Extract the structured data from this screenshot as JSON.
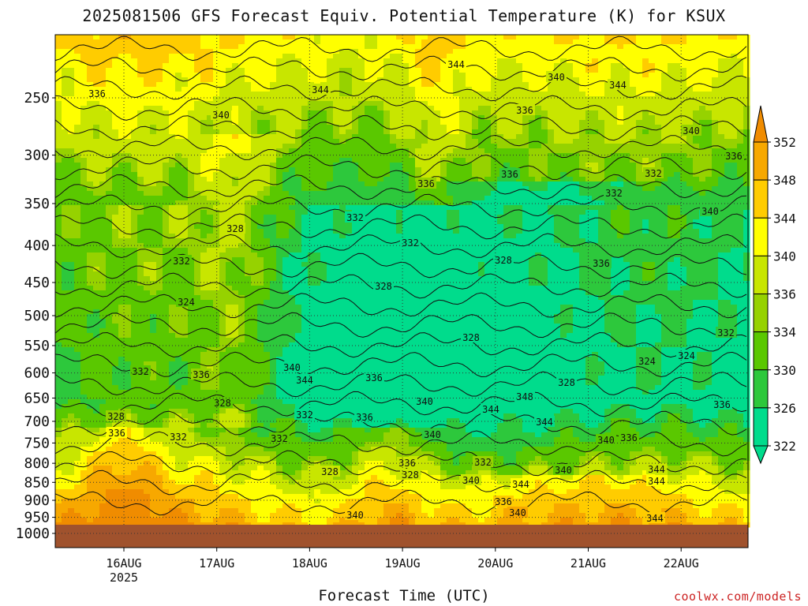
{
  "title": "2025081506 GFS Forecast Equiv. Potential Temperature (K) for KSUX",
  "xlabel": "Forecast Time (UTC)",
  "credit": "coolwx.com/models",
  "chart_data": {
    "type": "heatmap",
    "title": "2025081506 GFS Forecast Equiv. Potential Temperature (K) for KSUX",
    "xlabel": "Forecast Time (UTC)",
    "ylabel": "",
    "x_ticks": [
      {
        "label": "16AUG",
        "sub": "2025"
      },
      {
        "label": "17AUG",
        "sub": ""
      },
      {
        "label": "18AUG",
        "sub": ""
      },
      {
        "label": "19AUG",
        "sub": ""
      },
      {
        "label": "20AUG",
        "sub": ""
      },
      {
        "label": "21AUG",
        "sub": ""
      },
      {
        "label": "22AUG",
        "sub": ""
      }
    ],
    "y_ticks": [
      250,
      300,
      350,
      400,
      450,
      500,
      550,
      600,
      650,
      700,
      750,
      800,
      850,
      900,
      950,
      1000
    ],
    "y_unit": "hPa",
    "y_scale": "log",
    "y_reversed": true,
    "colorbar": {
      "levels": [
        352,
        348,
        344,
        340,
        336,
        334,
        330,
        326,
        322
      ],
      "colors": [
        "#f08c00",
        "#f7a800",
        "#ffcc00",
        "#ffff00",
        "#c8e600",
        "#96d200",
        "#5ac800",
        "#2dc83c",
        "#00dc8c"
      ]
    },
    "contour_labels": [
      "336",
      "340",
      "344",
      "344",
      "340",
      "344",
      "336",
      "340",
      "336",
      "332",
      "336",
      "332",
      "340",
      "336",
      "332",
      "328",
      "332",
      "328",
      "336",
      "332",
      "328",
      "324",
      "328",
      "332",
      "324",
      "324",
      "328",
      "332",
      "336",
      "340",
      "336",
      "344",
      "340",
      "344",
      "348",
      "336",
      "332",
      "328",
      "336",
      "328",
      "332",
      "336",
      "340",
      "344",
      "340",
      "336",
      "332",
      "328",
      "336",
      "328",
      "332",
      "340",
      "344",
      "340"
    ],
    "grid": true,
    "ground": true
  }
}
